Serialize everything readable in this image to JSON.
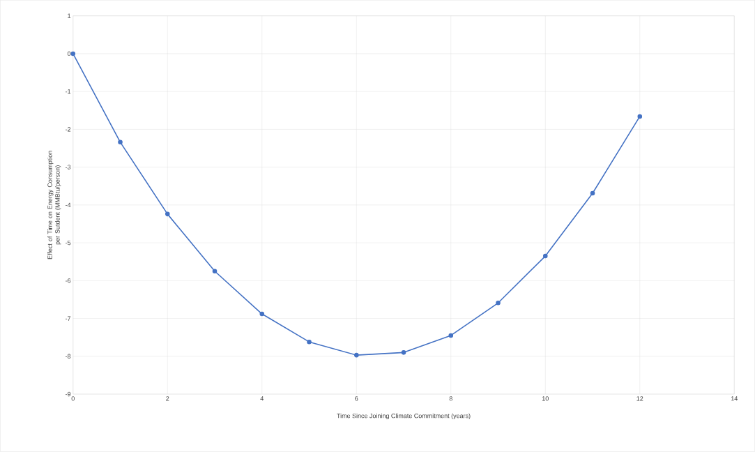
{
  "chart_data": {
    "type": "line",
    "xlabel": "Time Since Joining Climate Commitment  (years)",
    "ylabel": "Effect of Time on Energy  Consumption per Sutdent (MMBtu/person)",
    "x": [
      0,
      1,
      2,
      3,
      4,
      5,
      6,
      7,
      8,
      9,
      10,
      11,
      12
    ],
    "series": [
      {
        "color": "#4472c4",
        "values": [
          0,
          -2.34,
          -4.24,
          -5.75,
          -6.88,
          -7.62,
          -7.97,
          -7.9,
          -7.45,
          -6.59,
          -5.35,
          -3.69,
          -1.66
        ]
      }
    ],
    "xlim": [
      0,
      14
    ],
    "xticks": [
      0,
      2,
      4,
      6,
      8,
      10,
      12,
      14
    ],
    "ylim": [
      -9,
      1
    ],
    "yticks": [
      -9,
      -8,
      -7,
      -6,
      -5,
      -4,
      -3,
      -2,
      -1,
      0,
      1
    ],
    "grid": true,
    "marker": "circle",
    "line_style": "solid"
  }
}
